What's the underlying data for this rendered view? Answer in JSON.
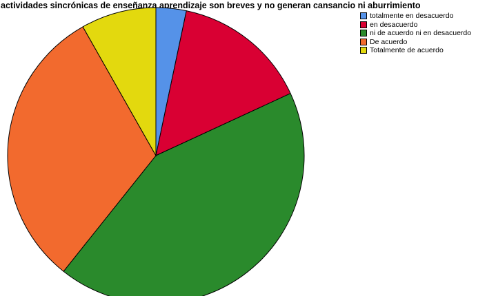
{
  "chart_data": {
    "type": "pie",
    "title": "Las actividades sincrónicas de enseñanza aprendizaje son breves y no generan cansancio ni aburrimiento",
    "legend_position": "top-right",
    "slices": [
      {
        "label": "totalmente en desacuerdo",
        "value": 3.3,
        "color": "#5592e8"
      },
      {
        "label": "en desacuerdo",
        "value": 14.8,
        "color": "#d90033"
      },
      {
        "label": "ni de acuerdo ni en desacuerdo",
        "value": 42.6,
        "color": "#2a8a2c"
      },
      {
        "label": "De acuerdo",
        "value": 31.1,
        "color": "#f26a2e"
      },
      {
        "label": "Totalmente de acuerdo",
        "value": 8.2,
        "color": "#e3d90e"
      }
    ]
  }
}
